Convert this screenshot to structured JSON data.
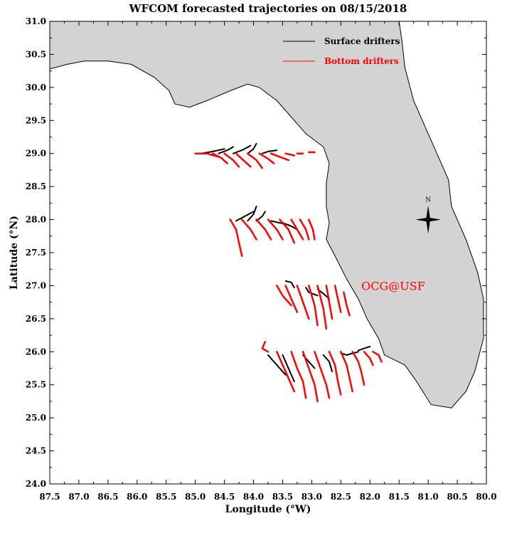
{
  "chart_data": {
    "type": "line",
    "title": "WFCOM forecasted trajectories on 08/15/2018",
    "xlabel": "Longitude (°W)",
    "ylabel": "Latitude (°N)",
    "xlim": [
      87.5,
      80.0
    ],
    "ylim": [
      24.0,
      31.0
    ],
    "x_ticks": [
      "87.5",
      "87.0",
      "86.5",
      "86.0",
      "85.5",
      "85.0",
      "84.5",
      "84.0",
      "83.5",
      "83.0",
      "82.5",
      "82.0",
      "81.5",
      "81.0",
      "80.5",
      "80.0"
    ],
    "y_ticks": [
      "24.0",
      "24.5",
      "25.0",
      "25.5",
      "26.0",
      "26.5",
      "27.0",
      "27.5",
      "28.0",
      "28.5",
      "29.0",
      "29.5",
      "30.0",
      "30.5",
      "31.0"
    ],
    "legend": {
      "placement": "top-right",
      "entries": [
        {
          "label": "Surface drifters",
          "color": "#000000"
        },
        {
          "label": "Bottom drifters",
          "color": "#ff0000"
        }
      ]
    },
    "annotation": {
      "text": "OCG@USF",
      "color": "#ff0000",
      "lon": 81.6,
      "lat": 27.0
    },
    "compass": {
      "label": "N",
      "lon": 81.0,
      "lat": 28.0
    },
    "colors": {
      "land": "#d3d3d3",
      "surface": "#000000",
      "bottom": "#ff0000"
    },
    "land_outline": [
      [
        87.5,
        31.0
      ],
      [
        87.5,
        30.28
      ],
      [
        87.2,
        30.35
      ],
      [
        86.9,
        30.4
      ],
      [
        86.5,
        30.4
      ],
      [
        86.1,
        30.35
      ],
      [
        85.7,
        30.15
      ],
      [
        85.45,
        29.95
      ],
      [
        85.35,
        29.75
      ],
      [
        85.1,
        29.7
      ],
      [
        84.8,
        29.8
      ],
      [
        84.4,
        29.95
      ],
      [
        84.1,
        30.05
      ],
      [
        83.9,
        30.0
      ],
      [
        83.6,
        29.8
      ],
      [
        83.4,
        29.6
      ],
      [
        83.1,
        29.3
      ],
      [
        82.8,
        29.1
      ],
      [
        82.7,
        28.85
      ],
      [
        82.75,
        28.55
      ],
      [
        82.75,
        28.2
      ],
      [
        82.7,
        27.95
      ],
      [
        82.75,
        27.7
      ],
      [
        82.6,
        27.45
      ],
      [
        82.4,
        27.1
      ],
      [
        82.2,
        26.8
      ],
      [
        82.05,
        26.5
      ],
      [
        81.85,
        26.2
      ],
      [
        81.75,
        25.95
      ],
      [
        81.4,
        25.8
      ],
      [
        81.2,
        25.55
      ],
      [
        80.95,
        25.2
      ],
      [
        80.6,
        25.15
      ],
      [
        80.35,
        25.4
      ],
      [
        80.2,
        25.7
      ],
      [
        80.05,
        26.2
      ],
      [
        80.05,
        26.8
      ],
      [
        80.15,
        27.2
      ],
      [
        80.35,
        27.7
      ],
      [
        80.6,
        28.2
      ],
      [
        80.65,
        28.6
      ],
      [
        80.95,
        29.2
      ],
      [
        81.25,
        29.8
      ],
      [
        81.4,
        30.3
      ],
      [
        81.45,
        30.7
      ],
      [
        81.5,
        31.0
      ]
    ],
    "series": [
      {
        "name": "Surface drifters",
        "color": "#000000",
        "tracks": [
          [
            [
              84.9,
              29.0
            ],
            [
              84.7,
              29.03
            ],
            [
              84.5,
              29.07
            ]
          ],
          [
            [
              84.6,
              29.0
            ],
            [
              84.45,
              29.05
            ],
            [
              84.35,
              29.1
            ]
          ],
          [
            [
              84.35,
              29.0
            ],
            [
              84.2,
              29.05
            ],
            [
              84.05,
              29.12
            ]
          ],
          [
            [
              84.1,
              29.0
            ],
            [
              84.0,
              29.07
            ],
            [
              83.95,
              29.15
            ]
          ],
          [
            [
              83.85,
              29.0
            ],
            [
              83.75,
              29.03
            ],
            [
              83.6,
              29.05
            ]
          ],
          [
            [
              84.3,
              27.98
            ],
            [
              84.15,
              28.05
            ],
            [
              84.0,
              28.12
            ]
          ],
          [
            [
              84.1,
              27.98
            ],
            [
              84.0,
              28.08
            ],
            [
              83.95,
              28.2
            ]
          ],
          [
            [
              83.95,
              27.98
            ],
            [
              83.85,
              28.05
            ],
            [
              83.8,
              28.12
            ]
          ],
          [
            [
              83.7,
              27.98
            ],
            [
              83.55,
              27.95
            ],
            [
              83.4,
              27.92
            ]
          ],
          [
            [
              83.5,
              27.95
            ],
            [
              83.35,
              27.9
            ],
            [
              83.25,
              27.85
            ]
          ],
          [
            [
              83.3,
              26.97
            ],
            [
              83.35,
              27.05
            ],
            [
              83.45,
              27.07
            ]
          ],
          [
            [
              83.1,
              26.97
            ],
            [
              83.05,
              26.9
            ],
            [
              82.9,
              26.85
            ]
          ],
          [
            [
              82.9,
              26.95
            ],
            [
              82.8,
              26.88
            ],
            [
              82.7,
              26.8
            ]
          ],
          [
            [
              83.75,
              25.95
            ],
            [
              83.6,
              25.8
            ],
            [
              83.45,
              25.65
            ]
          ],
          [
            [
              83.5,
              25.95
            ],
            [
              83.4,
              25.75
            ],
            [
              83.3,
              25.55
            ]
          ],
          [
            [
              83.15,
              25.95
            ],
            [
              83.05,
              25.85
            ],
            [
              82.95,
              25.75
            ]
          ],
          [
            [
              82.8,
              25.95
            ],
            [
              82.7,
              25.85
            ],
            [
              82.65,
              25.7
            ]
          ],
          [
            [
              82.5,
              25.98
            ],
            [
              82.4,
              25.95
            ],
            [
              82.2,
              26.0
            ]
          ],
          [
            [
              82.2,
              26.02
            ],
            [
              82.1,
              26.05
            ],
            [
              82.0,
              26.08
            ]
          ]
        ]
      },
      {
        "name": "Bottom drifters",
        "color": "#ff0000",
        "tracks": [
          [
            [
              85.0,
              29.0
            ],
            [
              84.8,
              29.0
            ],
            [
              84.6,
              28.95
            ]
          ],
          [
            [
              84.7,
              29.0
            ],
            [
              84.55,
              28.93
            ],
            [
              84.45,
              28.85
            ]
          ],
          [
            [
              84.5,
              29.0
            ],
            [
              84.35,
              28.9
            ],
            [
              84.25,
              28.8
            ]
          ],
          [
            [
              84.3,
              29.0
            ],
            [
              84.15,
              28.88
            ],
            [
              84.05,
              28.8
            ]
          ],
          [
            [
              84.1,
              29.0
            ],
            [
              83.95,
              28.9
            ],
            [
              83.85,
              28.78
            ]
          ],
          [
            [
              83.9,
              29.0
            ],
            [
              83.75,
              28.92
            ],
            [
              83.65,
              28.85
            ]
          ],
          [
            [
              83.7,
              29.0
            ],
            [
              83.55,
              28.95
            ],
            [
              83.4,
              28.9
            ]
          ],
          [
            [
              83.45,
              29.0
            ],
            [
              83.3,
              28.97
            ]
          ],
          [
            [
              83.25,
              29.0
            ],
            [
              83.15,
              29.0
            ]
          ],
          [
            [
              83.05,
              29.02
            ],
            [
              82.95,
              29.02
            ]
          ],
          [
            [
              84.4,
              28.0
            ],
            [
              84.3,
              27.85
            ],
            [
              84.25,
              27.65
            ],
            [
              84.2,
              27.45
            ]
          ],
          [
            [
              84.2,
              28.0
            ],
            [
              84.05,
              27.85
            ],
            [
              83.95,
              27.7
            ]
          ],
          [
            [
              83.95,
              28.0
            ],
            [
              83.8,
              27.85
            ],
            [
              83.7,
              27.7
            ]
          ],
          [
            [
              83.75,
              28.0
            ],
            [
              83.6,
              27.85
            ],
            [
              83.5,
              27.7
            ]
          ],
          [
            [
              83.55,
              28.0
            ],
            [
              83.4,
              27.85
            ],
            [
              83.3,
              27.65
            ]
          ],
          [
            [
              83.35,
              28.0
            ],
            [
              83.25,
              27.85
            ],
            [
              83.15,
              27.7
            ]
          ],
          [
            [
              83.2,
              28.0
            ],
            [
              83.1,
              27.85
            ],
            [
              83.05,
              27.7
            ]
          ],
          [
            [
              83.05,
              28.0
            ],
            [
              82.98,
              27.85
            ],
            [
              82.95,
              27.7
            ]
          ],
          [
            [
              83.6,
              27.0
            ],
            [
              83.5,
              26.85
            ],
            [
              83.35,
              26.7
            ]
          ],
          [
            [
              83.45,
              27.0
            ],
            [
              83.35,
              26.8
            ],
            [
              83.25,
              26.6
            ]
          ],
          [
            [
              83.25,
              27.0
            ],
            [
              83.15,
              26.75
            ],
            [
              83.05,
              26.5
            ]
          ],
          [
            [
              83.05,
              27.0
            ],
            [
              82.95,
              26.7
            ],
            [
              82.9,
              26.4
            ]
          ],
          [
            [
              82.9,
              27.0
            ],
            [
              82.8,
              26.65
            ],
            [
              82.75,
              26.35
            ]
          ],
          [
            [
              82.75,
              27.0
            ],
            [
              82.7,
              26.75
            ],
            [
              82.65,
              26.5
            ]
          ],
          [
            [
              82.6,
              27.0
            ],
            [
              82.55,
              26.8
            ],
            [
              82.5,
              26.6
            ]
          ],
          [
            [
              82.45,
              26.9
            ],
            [
              82.4,
              26.7
            ],
            [
              82.35,
              26.55
            ]
          ],
          [
            [
              83.8,
              26.15
            ],
            [
              83.85,
              26.05
            ],
            [
              83.75,
              26.0
            ]
          ],
          [
            [
              83.6,
              26.0
            ],
            [
              83.5,
              25.8
            ],
            [
              83.4,
              25.6
            ],
            [
              83.3,
              25.4
            ]
          ],
          [
            [
              83.35,
              26.0
            ],
            [
              83.25,
              25.75
            ],
            [
              83.15,
              25.55
            ],
            [
              83.1,
              25.3
            ]
          ],
          [
            [
              83.15,
              26.0
            ],
            [
              83.05,
              25.75
            ],
            [
              82.95,
              25.5
            ],
            [
              82.9,
              25.25
            ]
          ],
          [
            [
              82.95,
              26.0
            ],
            [
              82.85,
              25.75
            ],
            [
              82.75,
              25.5
            ],
            [
              82.7,
              25.3
            ]
          ],
          [
            [
              82.7,
              26.0
            ],
            [
              82.6,
              25.8
            ],
            [
              82.55,
              25.55
            ],
            [
              82.5,
              25.35
            ]
          ],
          [
            [
              82.5,
              26.0
            ],
            [
              82.4,
              25.8
            ],
            [
              82.35,
              25.6
            ],
            [
              82.3,
              25.4
            ]
          ],
          [
            [
              82.3,
              26.0
            ],
            [
              82.2,
              25.85
            ],
            [
              82.15,
              25.7
            ],
            [
              82.1,
              25.5
            ]
          ],
          [
            [
              82.1,
              26.0
            ],
            [
              82.0,
              25.9
            ],
            [
              81.95,
              25.8
            ]
          ],
          [
            [
              81.95,
              26.0
            ],
            [
              81.85,
              25.95
            ],
            [
              81.8,
              25.85
            ]
          ]
        ]
      }
    ]
  }
}
